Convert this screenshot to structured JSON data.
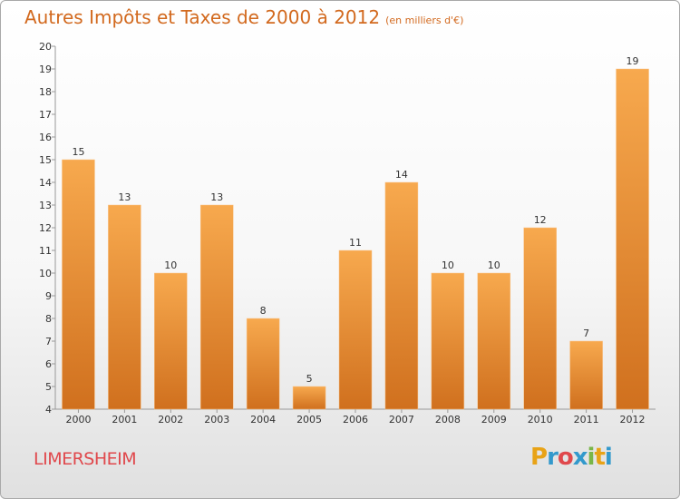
{
  "title": "Autres Impôts et Taxes de 2000 à 2012",
  "unit": "(en milliers d'€)",
  "commune": "LIMERSHEIM",
  "logo": {
    "letters": [
      "P",
      "r",
      "o",
      "x",
      "i",
      "t",
      "i"
    ],
    "colors": [
      "#e8a317",
      "#3399cc",
      "#e0484c",
      "#3399cc",
      "#7ab648",
      "#e8a317",
      "#3399cc"
    ]
  },
  "colors": {
    "bar_light": "#f7a94e",
    "bar_dark": "#d0701e",
    "accent": "#d2691e"
  },
  "chart_data": {
    "type": "bar",
    "title": "Autres Impôts et Taxes de 2000 à 2012",
    "categories": [
      "2000",
      "2001",
      "2002",
      "2003",
      "2004",
      "2005",
      "2006",
      "2007",
      "2008",
      "2009",
      "2010",
      "2011",
      "2012"
    ],
    "values": [
      15,
      13,
      10,
      13,
      8,
      5,
      11,
      14,
      10,
      10,
      12,
      7,
      19
    ],
    "ylim": [
      4,
      20
    ],
    "yticks": [
      4,
      5,
      6,
      7,
      8,
      9,
      10,
      11,
      12,
      13,
      14,
      15,
      16,
      17,
      18,
      19,
      20
    ],
    "grid": false,
    "xlabel": "",
    "ylabel": ""
  }
}
